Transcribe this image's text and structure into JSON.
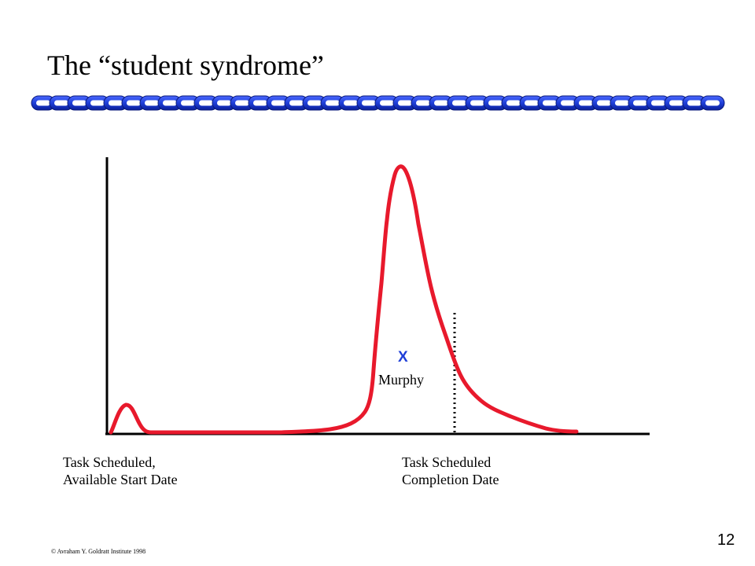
{
  "slide": {
    "title": "The “student syndrome”",
    "page_number": "12",
    "copyright": "© Avraham Y. Goldratt Institute 1998",
    "accent_color": "#1f3fd8",
    "curve_color": "#e8192c"
  },
  "diagram": {
    "start_label_line1": "Task Scheduled,",
    "start_label_line2": "Available Start Date",
    "end_label_line1": "Task Scheduled",
    "end_label_line2": "Completion Date",
    "marker_symbol": "X",
    "marker_label": "Murphy"
  },
  "decor": {
    "chain_icon": "chain-icon"
  }
}
